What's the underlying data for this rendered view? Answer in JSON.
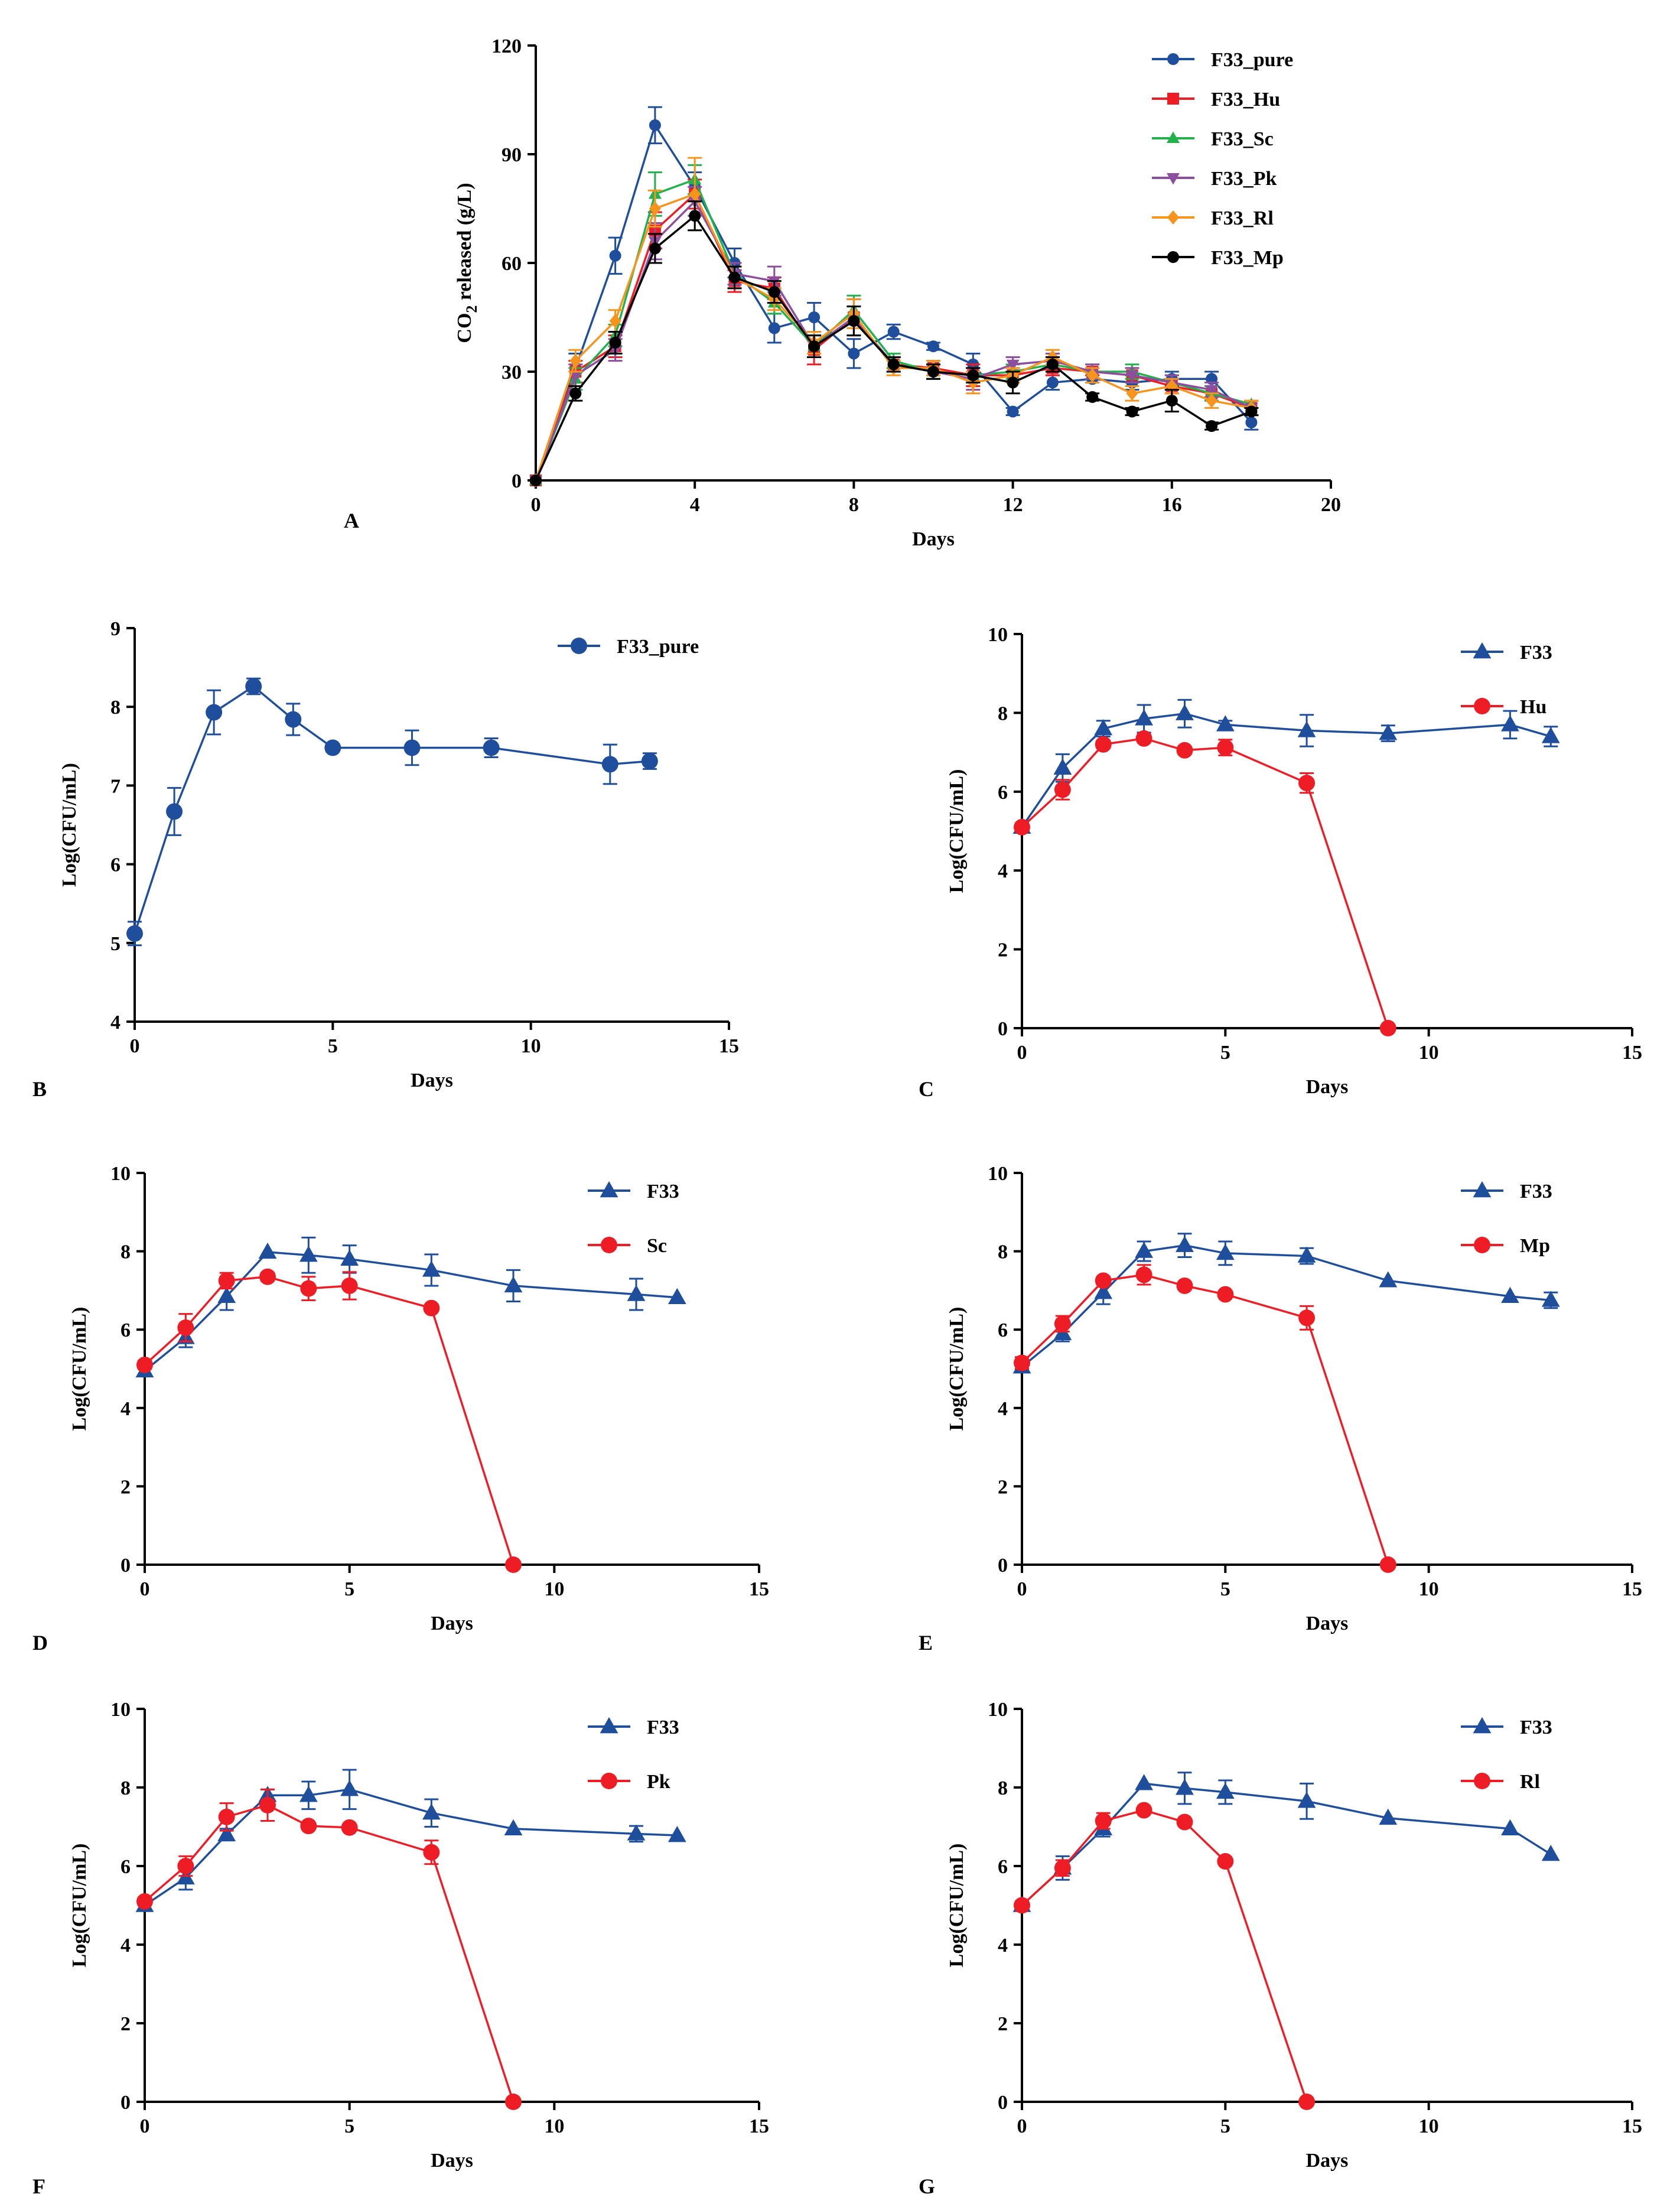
{
  "figure": {
    "colors": {
      "blue": "#1f4e9c",
      "red": "#ee1c25",
      "green": "#22b14c",
      "purple": "#8e4ea0",
      "orange": "#f7941d",
      "black": "#000000"
    }
  },
  "chart_data": [
    {
      "id": "A",
      "panel_label": "A",
      "type": "line",
      "title": "",
      "xlabel": "Days",
      "ylabel_main": "CO",
      "ylabel_sub": "2",
      "ylabel_rest": " released (g/L)",
      "xlim": [
        0,
        20
      ],
      "ylim": [
        0,
        120
      ],
      "xticks": [
        0,
        4,
        8,
        12,
        16,
        20
      ],
      "yticks": [
        0,
        30,
        60,
        90,
        120
      ],
      "legend_position": "top-right",
      "grid": false,
      "series": [
        {
          "name": "F33_pure",
          "color": "#1f4e9c",
          "marker": "circle",
          "x": [
            0,
            1,
            2,
            3,
            4,
            5,
            6,
            7,
            8,
            9,
            10,
            11,
            12,
            13,
            14,
            15,
            16,
            17,
            18
          ],
          "y": [
            0,
            31,
            62,
            98,
            81,
            60,
            42,
            45,
            35,
            41,
            37,
            32,
            19,
            27,
            28,
            27,
            28,
            28,
            16
          ],
          "err": [
            0,
            4,
            5,
            5,
            4,
            4,
            4,
            4,
            4,
            2,
            1,
            3,
            1,
            2,
            1,
            2,
            2,
            2,
            2
          ]
        },
        {
          "name": "F33_Hu",
          "color": "#ee1c25",
          "marker": "square",
          "x": [
            0,
            1,
            2,
            3,
            4,
            5,
            6,
            7,
            8,
            9,
            10,
            11,
            12,
            13,
            14,
            15,
            16,
            17,
            18
          ],
          "y": [
            0,
            30,
            37,
            69,
            79,
            55,
            53,
            36,
            45,
            32,
            31,
            29,
            29,
            31,
            30,
            29,
            26,
            24,
            20
          ],
          "err": [
            0,
            3,
            3,
            5,
            4,
            3,
            3,
            4,
            5,
            2,
            2,
            3,
            2,
            2,
            1,
            2,
            2,
            2,
            2
          ]
        },
        {
          "name": "F33_Sc",
          "color": "#22b14c",
          "marker": "triangle-up",
          "x": [
            0,
            1,
            2,
            3,
            4,
            5,
            6,
            7,
            8,
            9,
            10,
            11,
            12,
            13,
            14,
            15,
            16,
            17,
            18
          ],
          "y": [
            0,
            28,
            40,
            79,
            83,
            57,
            49,
            37,
            47,
            33,
            30,
            29,
            30,
            32,
            30,
            30,
            27,
            24,
            21
          ],
          "err": [
            0,
            3,
            3,
            6,
            4,
            3,
            3,
            3,
            4,
            2,
            2,
            2,
            2,
            2,
            2,
            2,
            2,
            2,
            1
          ]
        },
        {
          "name": "F33_Pk",
          "color": "#8e4ea0",
          "marker": "triangle-down",
          "x": [
            0,
            1,
            2,
            3,
            4,
            5,
            6,
            7,
            8,
            9,
            10,
            11,
            12,
            13,
            14,
            15,
            16,
            17,
            18
          ],
          "y": [
            0,
            29,
            36,
            66,
            77,
            57,
            55,
            37,
            45,
            32,
            30,
            28,
            32,
            33,
            30,
            29,
            27,
            25,
            20
          ],
          "err": [
            0,
            3,
            3,
            5,
            4,
            3,
            4,
            3,
            5,
            2,
            2,
            3,
            2,
            2,
            2,
            2,
            2,
            2,
            2
          ]
        },
        {
          "name": "F33_Rl",
          "color": "#f7941d",
          "marker": "diamond",
          "x": [
            0,
            1,
            2,
            3,
            4,
            5,
            6,
            7,
            8,
            9,
            10,
            11,
            12,
            13,
            14,
            15,
            16,
            17,
            18
          ],
          "y": [
            0,
            33,
            44,
            75,
            79,
            56,
            50,
            38,
            46,
            31,
            31,
            27,
            29,
            34,
            29,
            24,
            26,
            22,
            20
          ],
          "err": [
            0,
            3,
            3,
            5,
            10,
            3,
            3,
            3,
            4,
            2,
            2,
            3,
            2,
            2,
            2,
            2,
            2,
            2,
            2
          ]
        },
        {
          "name": "F33_Mp",
          "color": "#000000",
          "marker": "circle",
          "x": [
            0,
            1,
            2,
            3,
            4,
            5,
            6,
            7,
            8,
            9,
            10,
            11,
            12,
            13,
            14,
            15,
            16,
            17,
            18
          ],
          "y": [
            0,
            24,
            38,
            64,
            73,
            56,
            52,
            37,
            44,
            32,
            30,
            29,
            27,
            32,
            23,
            19,
            22,
            15,
            19
          ],
          "err": [
            0,
            2,
            3,
            4,
            4,
            3,
            3,
            3,
            4,
            2,
            2,
            2,
            3,
            2,
            1,
            1,
            3,
            1,
            1
          ]
        }
      ]
    },
    {
      "id": "B",
      "panel_label": "B",
      "type": "line",
      "xlabel": "Days",
      "ylabel": "Log(CFU/mL)",
      "xlim": [
        0,
        15
      ],
      "ylim": [
        4,
        9
      ],
      "xticks": [
        0,
        5,
        10,
        15
      ],
      "yticks": [
        4,
        5,
        6,
        7,
        8,
        9
      ],
      "legend_position": "top-right",
      "series": [
        {
          "name": "F33_pure",
          "color": "#1f4e9c",
          "marker": "circle",
          "x": [
            0,
            1,
            2,
            3,
            4,
            5,
            7,
            9,
            12,
            13
          ],
          "y": [
            5.12,
            6.67,
            7.93,
            8.26,
            7.84,
            7.48,
            7.48,
            7.48,
            7.27,
            7.31
          ],
          "err": [
            0.15,
            0.3,
            0.28,
            0.1,
            0.2,
            0,
            0.22,
            0.12,
            0.25,
            0.1
          ]
        }
      ]
    },
    {
      "id": "C",
      "panel_label": "C",
      "type": "line",
      "xlabel": "Days",
      "ylabel": "Log(CFU/mL)",
      "xlim": [
        0,
        15
      ],
      "ylim": [
        0,
        10
      ],
      "xticks": [
        0,
        5,
        10,
        15
      ],
      "yticks": [
        0,
        2,
        4,
        6,
        8,
        10
      ],
      "legend_position": "top-right",
      "series": [
        {
          "name": "F33",
          "color": "#1f4e9c",
          "marker": "triangle-up",
          "x": [
            0,
            1,
            2,
            3,
            4,
            5,
            7,
            9,
            12,
            13
          ],
          "y": [
            5.1,
            6.6,
            7.6,
            7.85,
            7.98,
            7.7,
            7.55,
            7.48,
            7.7,
            7.4
          ],
          "err": [
            0.1,
            0.35,
            0.2,
            0.35,
            0.35,
            0.1,
            0.4,
            0.2,
            0.35,
            0.25
          ]
        },
        {
          "name": "Hu",
          "color": "#ee1c25",
          "marker": "circle",
          "x": [
            0,
            1,
            2,
            3,
            4,
            5,
            7,
            9
          ],
          "y": [
            5.1,
            6.05,
            7.2,
            7.35,
            7.05,
            7.12,
            6.22,
            0
          ],
          "err": [
            0.1,
            0.25,
            0.1,
            0.1,
            0.1,
            0.2,
            0.25,
            0
          ]
        }
      ]
    },
    {
      "id": "D",
      "panel_label": "D",
      "type": "line",
      "xlabel": "Days",
      "ylabel": "Log(CFU/mL)",
      "xlim": [
        0,
        15
      ],
      "ylim": [
        0,
        10
      ],
      "xticks": [
        0,
        5,
        10,
        15
      ],
      "yticks": [
        0,
        2,
        4,
        6,
        8,
        10
      ],
      "legend_position": "top-right",
      "series": [
        {
          "name": "F33",
          "color": "#1f4e9c",
          "marker": "triangle-up",
          "x": [
            0,
            1,
            2,
            3,
            4,
            5,
            7,
            9,
            12,
            13
          ],
          "y": [
            4.95,
            5.8,
            6.85,
            7.98,
            7.9,
            7.8,
            7.52,
            7.12,
            6.9,
            6.82
          ],
          "err": [
            0.1,
            0.25,
            0.35,
            0,
            0.45,
            0.35,
            0.4,
            0.4,
            0.4,
            0
          ]
        },
        {
          "name": "Sc",
          "color": "#ee1c25",
          "marker": "circle",
          "x": [
            0,
            1,
            2,
            3,
            4,
            5,
            7,
            9
          ],
          "y": [
            5.1,
            6.05,
            7.25,
            7.35,
            7.05,
            7.12,
            6.55,
            0
          ],
          "err": [
            0.1,
            0.35,
            0.2,
            0.1,
            0.3,
            0.35,
            0.05,
            0
          ]
        }
      ]
    },
    {
      "id": "E",
      "panel_label": "E",
      "type": "line",
      "xlabel": "Days",
      "ylabel": "Log(CFU/mL)",
      "xlim": [
        0,
        15
      ],
      "ylim": [
        0,
        10
      ],
      "xticks": [
        0,
        5,
        10,
        15
      ],
      "yticks": [
        0,
        2,
        4,
        6,
        8,
        10
      ],
      "legend_position": "top-right",
      "series": [
        {
          "name": "F33",
          "color": "#1f4e9c",
          "marker": "triangle-up",
          "x": [
            0,
            1,
            2,
            3,
            4,
            5,
            7,
            9,
            12,
            13
          ],
          "y": [
            5.05,
            5.9,
            6.95,
            8.0,
            8.15,
            7.95,
            7.88,
            7.25,
            6.85,
            6.75
          ],
          "err": [
            0.1,
            0.2,
            0.3,
            0.25,
            0.3,
            0.3,
            0.2,
            0,
            0,
            0.2
          ]
        },
        {
          "name": "Mp",
          "color": "#ee1c25",
          "marker": "circle",
          "x": [
            0,
            1,
            2,
            3,
            4,
            5,
            7,
            9
          ],
          "y": [
            5.15,
            6.15,
            7.25,
            7.4,
            7.12,
            6.9,
            6.3,
            0
          ],
          "err": [
            0.15,
            0.2,
            0.1,
            0.25,
            0.1,
            0.05,
            0.3,
            0
          ]
        }
      ]
    },
    {
      "id": "F",
      "panel_label": "F",
      "type": "line",
      "xlabel": "Days",
      "ylabel": "Log(CFU/mL)",
      "xlim": [
        0,
        15
      ],
      "ylim": [
        0,
        10
      ],
      "xticks": [
        0,
        5,
        10,
        15
      ],
      "yticks": [
        0,
        2,
        4,
        6,
        8,
        10
      ],
      "legend_position": "top-right",
      "series": [
        {
          "name": "F33",
          "color": "#1f4e9c",
          "marker": "triangle-up",
          "x": [
            0,
            1,
            2,
            3,
            4,
            5,
            7,
            9,
            12,
            13
          ],
          "y": [
            5.0,
            5.7,
            6.8,
            7.8,
            7.8,
            7.95,
            7.35,
            6.95,
            6.82,
            6.78
          ],
          "err": [
            0.1,
            0.3,
            0.15,
            0.15,
            0.35,
            0.5,
            0.35,
            0,
            0.2,
            0
          ]
        },
        {
          "name": "Pk",
          "color": "#ee1c25",
          "marker": "circle",
          "x": [
            0,
            1,
            2,
            3,
            4,
            5,
            7,
            9
          ],
          "y": [
            5.1,
            6.0,
            7.25,
            7.55,
            7.02,
            6.98,
            6.35,
            0
          ],
          "err": [
            0.1,
            0.25,
            0.35,
            0.4,
            0.05,
            0.05,
            0.3,
            0
          ]
        }
      ]
    },
    {
      "id": "G",
      "panel_label": "G",
      "type": "line",
      "xlabel": "Days",
      "ylabel": "Log(CFU/mL)",
      "xlim": [
        0,
        15
      ],
      "ylim": [
        0,
        10
      ],
      "xticks": [
        0,
        5,
        10,
        15
      ],
      "yticks": [
        0,
        2,
        4,
        6,
        8,
        10
      ],
      "legend_position": "top-right",
      "series": [
        {
          "name": "F33",
          "color": "#1f4e9c",
          "marker": "triangle-up",
          "x": [
            0,
            1,
            2,
            3,
            4,
            5,
            7,
            9,
            12,
            13
          ],
          "y": [
            5.0,
            5.95,
            6.95,
            8.1,
            7.98,
            7.88,
            7.65,
            7.22,
            6.95,
            6.3
          ],
          "err": [
            0.1,
            0.3,
            0.2,
            0,
            0.4,
            0.3,
            0.45,
            0,
            0,
            0
          ]
        },
        {
          "name": "Rl",
          "color": "#ee1c25",
          "marker": "circle",
          "x": [
            0,
            1,
            2,
            3,
            4,
            5,
            7
          ],
          "y": [
            5.0,
            5.95,
            7.15,
            7.42,
            7.12,
            6.12,
            0
          ],
          "err": [
            0.05,
            0.2,
            0.2,
            0.05,
            0.05,
            0,
            0
          ]
        }
      ]
    }
  ]
}
